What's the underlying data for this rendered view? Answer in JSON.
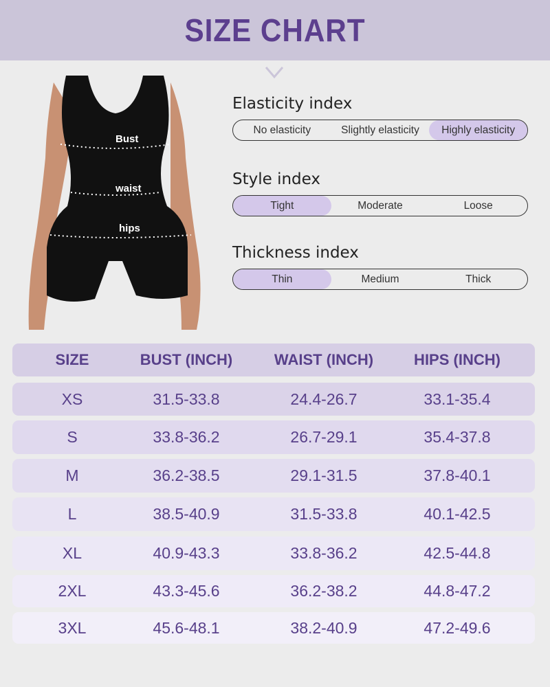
{
  "title": "SIZE CHART",
  "figure": {
    "labels": [
      "Bust",
      "waist",
      "hips"
    ]
  },
  "indexes": [
    {
      "title": "Elasticity index",
      "options": [
        "No elasticity",
        "Slightly elasticity",
        "Highly elasticity"
      ],
      "selected": 2
    },
    {
      "title": "Style index",
      "options": [
        "Tight",
        "Moderate",
        "Loose"
      ],
      "selected": 0
    },
    {
      "title": "Thickness index",
      "options": [
        "Thin",
        "Medium",
        "Thick"
      ],
      "selected": 0
    }
  ],
  "table": {
    "headers": [
      "SIZE",
      "BUST (INCH)",
      "WAIST (INCH)",
      "HIPS (INCH)"
    ],
    "rows": [
      [
        "XS",
        "31.5-33.8",
        "24.4-26.7",
        "33.1-35.4"
      ],
      [
        "S",
        "33.8-36.2",
        "26.7-29.1",
        "35.4-37.8"
      ],
      [
        "M",
        "36.2-38.5",
        "29.1-31.5",
        "37.8-40.1"
      ],
      [
        "L",
        "38.5-40.9",
        "31.5-33.8",
        "40.1-42.5"
      ],
      [
        "XL",
        "40.9-43.3",
        "33.8-36.2",
        "42.5-44.8"
      ],
      [
        "2XL",
        "43.3-45.6",
        "36.2-38.2",
        "44.8-47.2"
      ],
      [
        "3XL",
        "45.6-48.1",
        "38.2-40.9",
        "47.2-49.6"
      ]
    ]
  },
  "colors": {
    "accent": "#5c3f8e",
    "banner": "#cbc5d9",
    "selected": "#d4c8ea"
  }
}
